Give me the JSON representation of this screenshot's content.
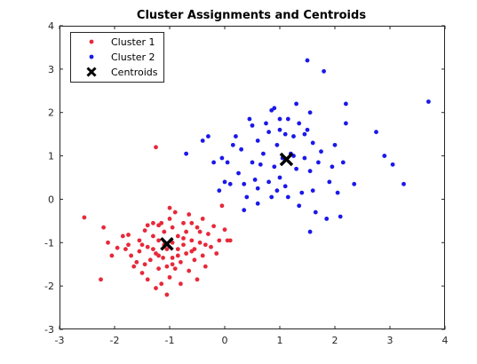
{
  "chart_data": {
    "type": "scatter",
    "title": "Cluster Assignments and Centroids",
    "xlabel": "",
    "ylabel": "",
    "xlim": [
      -3,
      4
    ],
    "ylim": [
      -3,
      4
    ],
    "xticks": [
      "-3",
      "-2",
      "-1",
      "0",
      "1",
      "2",
      "3",
      "4"
    ],
    "yticks": [
      "-3",
      "-2",
      "-1",
      "0",
      "1",
      "2",
      "3",
      "4"
    ],
    "grid": false,
    "legend_position": "top-left",
    "series": [
      {
        "name": "Cluster 1",
        "color": "#e8283a",
        "marker": "dot",
        "points": [
          [
            -2.55,
            -0.42
          ],
          [
            -2.25,
            -1.85
          ],
          [
            -2.2,
            -0.65
          ],
          [
            -2.12,
            -1.0
          ],
          [
            -2.05,
            -1.3
          ],
          [
            -1.95,
            -1.12
          ],
          [
            -1.85,
            -0.85
          ],
          [
            -1.75,
            -0.82
          ],
          [
            -1.75,
            -1.05
          ],
          [
            -1.7,
            -1.3
          ],
          [
            -1.65,
            -1.55
          ],
          [
            -1.6,
            -1.45
          ],
          [
            -1.55,
            -1.2
          ],
          [
            -1.55,
            -0.95
          ],
          [
            -1.5,
            -1.7
          ],
          [
            -1.45,
            -1.5
          ],
          [
            -1.45,
            -0.72
          ],
          [
            -1.4,
            -1.1
          ],
          [
            -1.4,
            -1.85
          ],
          [
            -1.35,
            -1.4
          ],
          [
            -1.3,
            -0.85
          ],
          [
            -1.3,
            -0.55
          ],
          [
            -1.25,
            -1.25
          ],
          [
            -1.25,
            -2.05
          ],
          [
            -1.2,
            -0.95
          ],
          [
            -1.2,
            -1.6
          ],
          [
            -1.15,
            -0.55
          ],
          [
            -1.15,
            -1.95
          ],
          [
            -1.12,
            -1.35
          ],
          [
            -1.1,
            -0.75
          ],
          [
            -1.05,
            -1.15
          ],
          [
            -1.05,
            -2.2
          ],
          [
            -1.05,
            -1.55
          ],
          [
            -1.0,
            -0.45
          ],
          [
            -1.0,
            -0.2
          ],
          [
            -1.0,
            -1.8
          ],
          [
            -0.95,
            -1.0
          ],
          [
            -0.95,
            -0.65
          ],
          [
            -0.95,
            -1.35
          ],
          [
            -0.9,
            -1.6
          ],
          [
            -0.9,
            -0.3
          ],
          [
            -0.85,
            -1.15
          ],
          [
            -0.85,
            -0.85
          ],
          [
            -0.8,
            -1.95
          ],
          [
            -0.8,
            -1.45
          ],
          [
            -0.75,
            -0.55
          ],
          [
            -0.75,
            -1.05
          ],
          [
            -0.7,
            -1.25
          ],
          [
            -0.7,
            -0.75
          ],
          [
            -0.65,
            -1.65
          ],
          [
            -0.65,
            -0.35
          ],
          [
            -0.6,
            -0.95
          ],
          [
            -0.55,
            -1.4
          ],
          [
            -0.55,
            -1.15
          ],
          [
            -0.5,
            -0.65
          ],
          [
            -0.5,
            -1.85
          ],
          [
            -0.45,
            -1.0
          ],
          [
            -0.4,
            -0.45
          ],
          [
            -0.4,
            -1.3
          ],
          [
            -0.35,
            -1.55
          ],
          [
            -0.3,
            -0.8
          ],
          [
            -0.25,
            -1.1
          ],
          [
            -0.2,
            -0.62
          ],
          [
            -0.15,
            -1.25
          ],
          [
            -0.1,
            -0.95
          ],
          [
            -0.05,
            -0.15
          ],
          [
            0.0,
            -0.7
          ],
          [
            0.05,
            -0.95
          ],
          [
            0.1,
            -0.95
          ],
          [
            -0.35,
            -1.05
          ],
          [
            -0.6,
            -1.2
          ],
          [
            -0.85,
            -1.3
          ],
          [
            -1.1,
            -1.05
          ],
          [
            -1.3,
            -1.15
          ],
          [
            -1.5,
            -1.05
          ],
          [
            -1.2,
            -1.3
          ],
          [
            -0.95,
            -1.5
          ],
          [
            -0.75,
            -0.9
          ],
          [
            -1.25,
            1.2
          ],
          [
            -1.2,
            -0.6
          ],
          [
            -0.6,
            -0.55
          ],
          [
            -0.45,
            -0.75
          ],
          [
            -1.4,
            -0.6
          ],
          [
            -1.8,
            -1.15
          ]
        ]
      },
      {
        "name": "Cluster 2",
        "color": "#1b18ea",
        "marker": "dot",
        "points": [
          [
            -0.7,
            1.05
          ],
          [
            -0.4,
            1.35
          ],
          [
            -0.3,
            1.45
          ],
          [
            -0.2,
            0.85
          ],
          [
            -0.1,
            0.2
          ],
          [
            -0.05,
            0.95
          ],
          [
            0.0,
            0.4
          ],
          [
            0.05,
            0.85
          ],
          [
            0.1,
            0.35
          ],
          [
            0.15,
            1.25
          ],
          [
            0.2,
            1.45
          ],
          [
            0.25,
            0.6
          ],
          [
            0.3,
            1.15
          ],
          [
            0.35,
            -0.25
          ],
          [
            0.35,
            0.35
          ],
          [
            0.4,
            0.05
          ],
          [
            0.45,
            1.85
          ],
          [
            0.5,
            0.85
          ],
          [
            0.5,
            1.7
          ],
          [
            0.55,
            0.45
          ],
          [
            0.6,
            0.25
          ],
          [
            0.6,
            1.35
          ],
          [
            0.65,
            0.8
          ],
          [
            0.7,
            1.05
          ],
          [
            0.75,
            1.75
          ],
          [
            0.8,
            0.4
          ],
          [
            0.8,
            1.55
          ],
          [
            0.85,
            2.05
          ],
          [
            0.85,
            0.05
          ],
          [
            0.9,
            2.1
          ],
          [
            0.9,
            0.75
          ],
          [
            0.95,
            0.2
          ],
          [
            0.95,
            1.25
          ],
          [
            1.0,
            1.6
          ],
          [
            1.0,
            0.5
          ],
          [
            1.05,
            0.95
          ],
          [
            1.1,
            1.5
          ],
          [
            1.1,
            0.3
          ],
          [
            1.15,
            1.85
          ],
          [
            1.15,
            0.05
          ],
          [
            1.2,
            1.05
          ],
          [
            1.25,
            1.45
          ],
          [
            1.3,
            0.7
          ],
          [
            1.3,
            2.2
          ],
          [
            1.35,
            -0.15
          ],
          [
            1.35,
            1.75
          ],
          [
            1.4,
            0.15
          ],
          [
            1.45,
            0.95
          ],
          [
            1.5,
            1.6
          ],
          [
            1.5,
            3.2
          ],
          [
            1.55,
            2.0
          ],
          [
            1.55,
            0.65
          ],
          [
            1.6,
            0.2
          ],
          [
            1.6,
            1.3
          ],
          [
            1.65,
            -0.3
          ],
          [
            1.7,
            0.85
          ],
          [
            1.75,
            1.1
          ],
          [
            1.8,
            2.95
          ],
          [
            1.85,
            -0.45
          ],
          [
            1.9,
            0.4
          ],
          [
            1.95,
            0.75
          ],
          [
            2.0,
            1.25
          ],
          [
            2.05,
            0.15
          ],
          [
            2.1,
            -0.4
          ],
          [
            2.15,
            0.85
          ],
          [
            2.2,
            1.75
          ],
          [
            2.2,
            2.2
          ],
          [
            2.35,
            0.35
          ],
          [
            2.75,
            1.55
          ],
          [
            2.9,
            1.0
          ],
          [
            3.05,
            0.8
          ],
          [
            3.25,
            0.35
          ],
          [
            3.7,
            2.25
          ],
          [
            1.55,
            -0.75
          ],
          [
            1.25,
            1.0
          ],
          [
            0.6,
            -0.1
          ],
          [
            1.0,
            1.85
          ],
          [
            1.45,
            1.5
          ]
        ]
      }
    ],
    "centroids": {
      "name": "Centroids",
      "color": "#000000",
      "marker": "x",
      "points": [
        [
          -1.05,
          -1.03
        ],
        [
          1.12,
          0.92
        ]
      ]
    }
  }
}
